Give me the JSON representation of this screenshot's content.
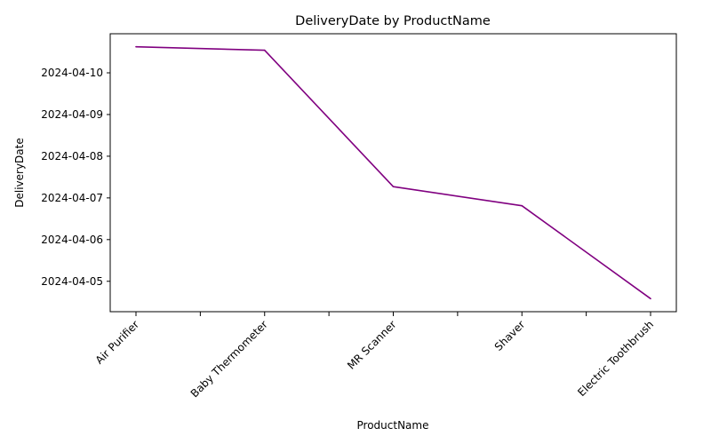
{
  "chart_data": {
    "type": "line",
    "title": "DeliveryDate by ProductName",
    "xlabel": "ProductName",
    "ylabel": "DeliveryDate",
    "categories": [
      "Air Purifier",
      "Baby Thermometer",
      "MR Scanner",
      "Shaver",
      "Electric Toothbrush"
    ],
    "values": [
      "2024-04-10 15:00",
      "2024-04-10 13:00",
      "2024-04-07 06:30",
      "2024-04-06 19:30",
      "2024-04-04 14:00"
    ],
    "y_ticks": [
      "2024-04-05",
      "2024-04-06",
      "2024-04-07",
      "2024-04-08",
      "2024-04-09",
      "2024-04-10"
    ],
    "ylim": [
      "2024-04-04 06:30",
      "2024-04-10 22:30"
    ],
    "line_color": "#800080",
    "grid": false,
    "legend": "none"
  }
}
